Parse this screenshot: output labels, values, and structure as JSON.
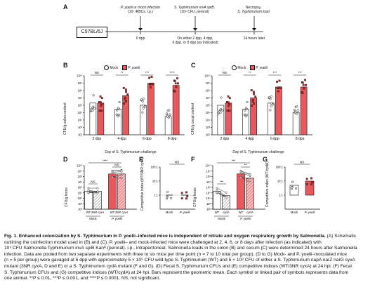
{
  "panelA": {
    "label": "A",
    "step1_line1": "P. yoelii or mock infection",
    "step1_line2": "(10⁷ iRBCs, i.p.)",
    "step2_line1": "S. Typhimurium invA spiB,",
    "step2_line2": "(10⁹ CFU, peroral)",
    "step3_line1": "Necropsy,",
    "step3_line2": "S. Typhimurium load",
    "mouse": "C57BL/6J",
    "t0": "0 dpp",
    "t_mid_line1": "On either 2 dpp, 4 dpp,",
    "t_mid_line2": "6 dpp, or 8 dpp (as indicated)",
    "t_end": "24 hours later"
  },
  "colors": {
    "mock": "#ffffff",
    "py": "#e8585c",
    "py_dark": "#c0282e",
    "line": "#111111"
  },
  "panelB": {
    "label": "B",
    "legend_mock": "Mock",
    "legend_py": "P. yoelii",
    "ylabel": "CFU/g colon content",
    "xlabel": "Day of S. Typhimurium challenge",
    "yticks": [
      "10¹⁰",
      "10⁹",
      "10⁸",
      "10⁷",
      "10⁶",
      "10⁵",
      "10⁴",
      "10³",
      "10²"
    ],
    "categories": [
      "2 dpp",
      "4 dpp",
      "6 dpp",
      "8 dpp"
    ],
    "sig": [
      "NS",
      "**",
      "***",
      "****"
    ]
  },
  "panelC": {
    "label": "C",
    "legend_mock": "Mock",
    "legend_py": "P. yoelii",
    "ylabel": "CFU/g cecal content",
    "xlabel": "Day of S. Typhimurium challenge",
    "yticks": [
      "10¹⁰",
      "10⁹",
      "10⁸",
      "10⁷",
      "10⁶",
      "10⁵",
      "10⁴",
      "10³",
      "10²"
    ],
    "categories": [
      "2 dpp",
      "4 dpp",
      "6 dpp",
      "8 dpp"
    ],
    "sig": [
      "NS",
      "**",
      "***",
      "***"
    ]
  },
  "panelD": {
    "label": "D",
    "ylabel": "CFU/g feces",
    "yticks": [
      "10¹⁰",
      "10⁹",
      "10⁸",
      "10⁷",
      "10⁶",
      "10⁵",
      "10⁴",
      "10³",
      "10²"
    ],
    "bars": [
      "WT",
      "3NR cyxA",
      "WT",
      "3NR cyxA"
    ],
    "groups": [
      "Mock",
      "P. yoelii"
    ],
    "sig_top": "****",
    "sig_mock": "NS",
    "sig_py": "NS"
  },
  "panelE": {
    "label": "E",
    "ylabel": "Competitive index (WT/3NR cyxA)",
    "yticks": [
      "100:1",
      "10:1",
      "1:1"
    ],
    "xticks": [
      "Mock",
      "P. yoelii"
    ],
    "sig": "NS"
  },
  "panelF": {
    "label": "F",
    "ylabel": "CFU/g feces",
    "yticks": [
      "10¹⁰",
      "10⁹",
      "10⁸",
      "10⁷",
      "10⁶",
      "10⁵",
      "10⁴",
      "10³",
      "10²"
    ],
    "bars": [
      "WT",
      "cydA",
      "WT",
      "cydA"
    ],
    "groups": [
      "Mock",
      "P. yoelii"
    ],
    "sig_top": "***",
    "sig_mock": "***",
    "sig_py": "**"
  },
  "panelG": {
    "label": "G",
    "ylabel": "Competitive index (WT/cydA)",
    "yticks": [
      "100:1",
      "10:1",
      "1:1"
    ],
    "xticks": [
      "Mock",
      "P. yoelii"
    ],
    "sig": "NS"
  },
  "caption": {
    "title": "Fig. 1. Enhanced colonization by S. Typhimurium in P. yoelii–infected mice is independent of nitrate and oxygen respiratory growth by Salmonella.",
    "line1_rest": " (A) Schematic",
    "line2": "outlining the coinfection model used in (B) and (C). P. yoelii– and mock-infected mice were challenged at 2, 4, 6, or 8 days after infection (as indicated) with",
    "line3": "10⁹ CFU Salmonella Typhimurium invA spiB Kanᴿ (peroral). i.p., intraperitoneal. Salmonella loads in the colon (B) and cecum (C) were determined 24 hours after Salmonella",
    "line4": "infection. Data are pooled from two separate experiments with three to six mice per time point (n = 7 to 10 total per group). (D to G) Mock- and P. yoelii–inoculated mice",
    "line5": "(n = 5 per group) were gavaged at 6 dpp with approximately 5 × 10⁸ CFU wild-type S. Typhimurium (WT) and 5 × 10⁸ CFU of either a S. Typhimurium napA narZ narG cyxA",
    "line6": "mutant (3NR cyxA, D and E) or a S. Typhimurium cydA mutant (F and G). (D) Fecal S. Typhimurium CFUs and (E) competitive indices (WT/3NR cyxA) at 24 hpi. (F) Fecal",
    "line7": "S. Typhimurium CFUs and (G) competitive indices (WT/cydA) at 24 hpi. Bars represent the geometric mean. Each symbol or linked pair of symbols represents data from",
    "line8": "one animal. **P ≤ 0.01, ***P ≤ 0.001, and ****P ≤ 0.0001. NS, not significant."
  },
  "chart_data": [
    {
      "panel": "B",
      "type": "bar",
      "scale": "log",
      "ylabel": "CFU/g colon content",
      "xlabel": "Day of S. Typhimurium challenge",
      "categories": [
        "2 dpp",
        "4 dpp",
        "6 dpp",
        "8 dpp"
      ],
      "ylim": [
        100,
        10000000000
      ],
      "series": [
        {
          "name": "Mock",
          "values": [
            2000000,
            300000,
            1000000,
            30000
          ]
        },
        {
          "name": "P. yoelii",
          "values": [
            2000000,
            20000000,
            1000000000,
            500000000
          ]
        }
      ]
    },
    {
      "panel": "C",
      "type": "bar",
      "scale": "log",
      "ylabel": "CFU/g cecal content",
      "xlabel": "Day of S. Typhimurium challenge",
      "categories": [
        "2 dpp",
        "4 dpp",
        "6 dpp",
        "8 dpp"
      ],
      "ylim": [
        100,
        10000000000
      ],
      "series": [
        {
          "name": "Mock",
          "values": [
            1000000,
            300000,
            2000000,
            100000
          ]
        },
        {
          "name": "P. yoelii",
          "values": [
            2000000,
            10000000,
            300000000,
            300000000
          ]
        }
      ]
    },
    {
      "panel": "D",
      "type": "bar",
      "scale": "log",
      "ylabel": "CFU/g feces",
      "categories": [
        "WT",
        "3NR cyxA",
        "WT",
        "3NR cyxA"
      ],
      "ylim": [
        100,
        10000000000
      ],
      "values": [
        200000,
        200000,
        300000000,
        300000000
      ]
    },
    {
      "panel": "E",
      "type": "scatter",
      "ylabel": "Competitive index (WT/3NR cyxA)",
      "categories": [
        "Mock",
        "P. yoelii"
      ],
      "ylim": [
        0.1,
        100
      ],
      "values": [
        1.0,
        1.0
      ]
    },
    {
      "panel": "F",
      "type": "bar",
      "scale": "log",
      "ylabel": "CFU/g feces",
      "categories": [
        "WT",
        "cydA",
        "WT",
        "cydA"
      ],
      "ylim": [
        100,
        10000000000
      ],
      "values": [
        200000,
        30000,
        300000000,
        50000000
      ]
    },
    {
      "panel": "G",
      "type": "bar",
      "ylabel": "Competitive index (WT/cydA)",
      "categories": [
        "Mock",
        "P. yoelii"
      ],
      "ylim": [
        0.1,
        100
      ],
      "values": [
        5,
        10
      ]
    }
  ]
}
